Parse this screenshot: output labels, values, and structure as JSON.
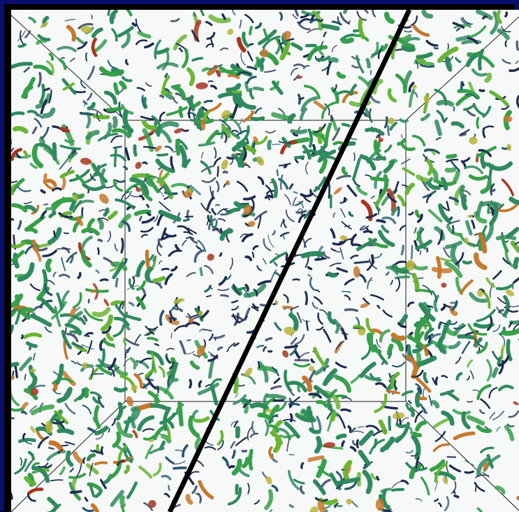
{
  "colors": {
    "border": "#0a0f6e",
    "background": "#f7f8f8",
    "divider": "#000000",
    "box_lines": "#1a1a1a",
    "palette": [
      "#1b2a4e",
      "#1f3b5c",
      "#24566b",
      "#2a6f74",
      "#2f8a5e",
      "#37a04a",
      "#6ab536",
      "#b8b33b",
      "#c6782d",
      "#a8351f"
    ]
  },
  "figure": {
    "kind": "volume-rendered-vortex-isosurfaces",
    "view": "perspective-cube",
    "split_line": "diagonal"
  }
}
